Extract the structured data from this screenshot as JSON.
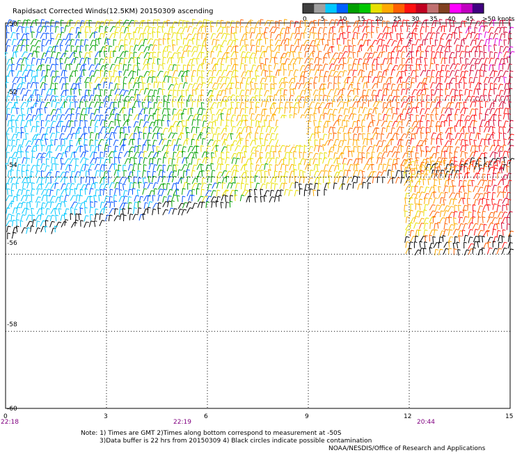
{
  "title": "Rapidsact Corrected Winds(12.5KM) 20150309 ascending",
  "colorbar": {
    "labels": [
      "0",
      "5",
      "10",
      "15",
      "20",
      "25",
      "30",
      "35",
      "40",
      "45",
      ">50 knots"
    ],
    "colors": [
      "#404040",
      "#a0a0a0",
      "#00c8ff",
      "#0060ff",
      "#00a000",
      "#00c800",
      "#e8e000",
      "#ffaa00",
      "#ff6000",
      "#ff1010",
      "#c00020",
      "#c07070",
      "#804020",
      "#ff00ff",
      "#c000c0",
      "#400080"
    ]
  },
  "axes": {
    "y_ticks": [
      "-50",
      "-52",
      "-54",
      "-56",
      "-58",
      "-60"
    ],
    "x_ticks": [
      "0",
      "3",
      "6",
      "9",
      "12",
      "15"
    ]
  },
  "times": [
    "22:18",
    "22:19",
    "20:44"
  ],
  "notes": [
    "Note: 1) Times are GMT 2)Times along bottom correspond to measurement at -50S",
    "3)Data buffer is 22 hrs from 20150309 4) Black circles indicate possible contamination",
    "NOAA/NESDIS/Office of Research and Applications"
  ],
  "chart_data": {
    "type": "wind_barbs",
    "title": "Rapidsact Corrected Winds(12.5KM) 20150309 ascending",
    "x_range": [
      0,
      15
    ],
    "y_range": [
      -60,
      -50
    ],
    "x_ticks": [
      0,
      3,
      6,
      9,
      12,
      15
    ],
    "y_ticks": [
      -50,
      -52,
      -54,
      -56,
      -58,
      -60
    ],
    "grid": true,
    "colorbar_units": "knots",
    "colorbar_levels": [
      0,
      5,
      10,
      15,
      20,
      25,
      30,
      35,
      40,
      45,
      50
    ],
    "times_gmt": [
      {
        "x": 0,
        "label": "22:18"
      },
      {
        "x": 4.5,
        "label": "22:19"
      },
      {
        "x": 12.5,
        "label": "20:44"
      }
    ]
  }
}
